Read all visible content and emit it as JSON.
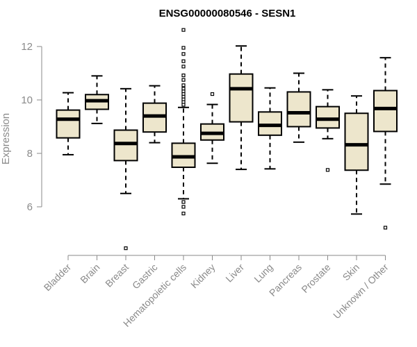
{
  "chart_data": {
    "type": "box",
    "title": "ENSG00000080546 - SESN1",
    "xlabel": "",
    "ylabel": "Expression",
    "ylim": [
      4.0,
      12.8
    ],
    "yticks": [
      6,
      8,
      10,
      12
    ],
    "box_fill": "#ede6cc",
    "box_edge": "#000000",
    "median_color": "#000000",
    "axis_color": "#8a8a8a",
    "categories": [
      "Bladder",
      "Brain",
      "Breast",
      "Gastric",
      "Hematopoietic cells",
      "Kidney",
      "Liver",
      "Lung",
      "Pancreas",
      "Prostate",
      "Skin",
      "Unknown / Other"
    ],
    "boxes": [
      {
        "category": "Bladder",
        "whisker_low": 7.95,
        "q1": 8.58,
        "median": 9.28,
        "q3": 9.62,
        "whisker_high": 10.27,
        "outliers": []
      },
      {
        "category": "Brain",
        "whisker_low": 9.12,
        "q1": 9.65,
        "median": 9.97,
        "q3": 10.2,
        "whisker_high": 10.9,
        "outliers": []
      },
      {
        "category": "Breast",
        "whisker_low": 6.5,
        "q1": 7.73,
        "median": 8.37,
        "q3": 8.87,
        "whisker_high": 10.42,
        "outliers": [
          4.45
        ]
      },
      {
        "category": "Gastric",
        "whisker_low": 8.4,
        "q1": 8.8,
        "median": 9.4,
        "q3": 9.88,
        "whisker_high": 10.53,
        "outliers": []
      },
      {
        "category": "Hematopoietic cells",
        "whisker_low": 6.3,
        "q1": 7.48,
        "median": 7.87,
        "q3": 8.38,
        "whisker_high": 9.72,
        "outliers": [
          12.62,
          11.95,
          11.72,
          11.45,
          11.25,
          10.92,
          10.75,
          10.55,
          10.42,
          10.32,
          10.22,
          10.12,
          10.02,
          9.92,
          9.82,
          6.18,
          6.0,
          5.75
        ]
      },
      {
        "category": "Kidney",
        "whisker_low": 7.63,
        "q1": 8.5,
        "median": 8.75,
        "q3": 9.1,
        "whisker_high": 9.83,
        "outliers": [
          10.22
        ]
      },
      {
        "category": "Liver",
        "whisker_low": 7.4,
        "q1": 9.18,
        "median": 10.42,
        "q3": 10.97,
        "whisker_high": 12.02,
        "outliers": []
      },
      {
        "category": "Lung",
        "whisker_low": 7.42,
        "q1": 8.68,
        "median": 9.05,
        "q3": 9.55,
        "whisker_high": 10.45,
        "outliers": []
      },
      {
        "category": "Pancreas",
        "whisker_low": 8.42,
        "q1": 9.0,
        "median": 9.52,
        "q3": 10.3,
        "whisker_high": 11.0,
        "outliers": []
      },
      {
        "category": "Prostate",
        "whisker_low": 8.55,
        "q1": 8.95,
        "median": 9.28,
        "q3": 9.75,
        "whisker_high": 10.38,
        "outliers": [
          7.38
        ]
      },
      {
        "category": "Skin",
        "whisker_low": 5.73,
        "q1": 7.37,
        "median": 8.32,
        "q3": 9.5,
        "whisker_high": 10.15,
        "outliers": []
      },
      {
        "category": "Unknown / Other",
        "whisker_low": 6.85,
        "q1": 8.82,
        "median": 9.68,
        "q3": 10.35,
        "whisker_high": 11.58,
        "outliers": [
          5.22
        ]
      }
    ],
    "grid": false,
    "legend": "none"
  }
}
